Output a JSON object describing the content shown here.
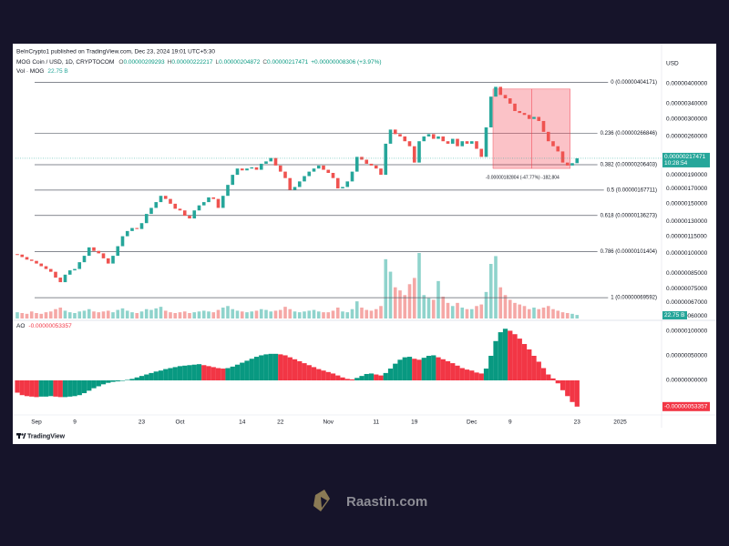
{
  "header": {
    "published": "BeInCrypto1 published on TradingView.com, Dec 23, 2024 19:01 UTC+5:30",
    "symbol": "MOG Coin / USD, 1D, CRYPTOCOM",
    "ohlc": [
      {
        "key": "O",
        "value": "0.00000209293"
      },
      {
        "key": "H",
        "value": "0.00000222217"
      },
      {
        "key": "L",
        "value": "0.00000204872"
      },
      {
        "key": "C",
        "value": "0.00000217471"
      }
    ],
    "change": "+0.00000008306 (+3.97%)"
  },
  "brand": "TradingView",
  "watermark": "Raastin.com",
  "chart_data": [
    {
      "type": "candlestick",
      "currency": "USD",
      "log_scale": true,
      "grid": false,
      "up_color": "#26a69a",
      "down_color": "#ef5350",
      "ylim": [
        5.87e-07,
        4.54e-06
      ],
      "yticks": [
        {
          "value": 4e-06,
          "label": "0.00000400000"
        },
        {
          "value": 3.4e-06,
          "label": "0.00000340000"
        },
        {
          "value": 3e-06,
          "label": "0.00000300000"
        },
        {
          "value": 2.6e-06,
          "label": "0.00000260000"
        },
        {
          "value": 1.9e-06,
          "label": "0.00000190000"
        },
        {
          "value": 1.7e-06,
          "label": "0.00000170000"
        },
        {
          "value": 1.5e-06,
          "label": "0.00000150000"
        },
        {
          "value": 1.3e-06,
          "label": "0.00000130000"
        },
        {
          "value": 1.15e-06,
          "label": "0.00000115000"
        },
        {
          "value": 1e-06,
          "label": "0.00000100000"
        },
        {
          "value": 8.5e-07,
          "label": "0.00000085000"
        },
        {
          "value": 7.5e-07,
          "label": "0.00000075000"
        },
        {
          "value": 6.7e-07,
          "label": "0.00000067000"
        },
        {
          "value": 6e-07,
          "label": "0.00000060000"
        }
      ],
      "series": [
        {
          "name": "MOG Coin / USD",
          "values": [
            9.9e-07,
            9.7e-07,
            9.5e-07,
            9.4e-07,
            9.2e-07,
            9e-07,
            8.8e-07,
            8.6e-07,
            8.2e-07,
            7.9e-07,
            8.4e-07,
            8.7e-07,
            8.8e-07,
            9.3e-07,
            9.8e-07,
            1.05e-06,
            1.02e-06,
            1e-06,
            9.6e-07,
            9.2e-07,
            9.8e-07,
            1.06e-06,
            1.15e-06,
            1.2e-06,
            1.23e-06,
            1.22e-06,
            1.28e-06,
            1.38e-06,
            1.45e-06,
            1.52e-06,
            1.6e-06,
            1.56e-06,
            1.5e-06,
            1.44e-06,
            1.42e-06,
            1.36e-06,
            1.33e-06,
            1.42e-06,
            1.48e-06,
            1.52e-06,
            1.58e-06,
            1.56e-06,
            1.45e-06,
            1.6e-06,
            1.75e-06,
            1.9e-06,
            2e-06,
            1.97e-06,
            2e-06,
            2.02e-06,
            1.98e-06,
            2.08e-06,
            2.12e-06,
            2.18e-06,
            2.05e-06,
            1.95e-06,
            1.85e-06,
            1.68e-06,
            1.72e-06,
            1.8e-06,
            1.88e-06,
            1.95e-06,
            2e-06,
            2.05e-06,
            1.98e-06,
            1.93e-06,
            1.85e-06,
            1.7e-06,
            1.72e-06,
            1.8e-06,
            1.95e-06,
            2.2e-06,
            2.15e-06,
            2.08e-06,
            2.05e-06,
            2e-06,
            1.9e-06,
            2.45e-06,
            2.75e-06,
            2.65e-06,
            2.6e-06,
            2.5e-06,
            2.4e-06,
            2.1e-06,
            2.5e-06,
            2.6e-06,
            2.65e-06,
            2.55e-06,
            2.6e-06,
            2.5e-06,
            2.45e-06,
            2.55e-06,
            2.4e-06,
            2.5e-06,
            2.45e-06,
            2.5e-06,
            2.35e-06,
            2.2e-06,
            2.8e-06,
            3.6e-06,
            3.9e-06,
            3.65e-06,
            3.55e-06,
            3.4e-06,
            3.2e-06,
            3.15e-06,
            3.1e-06,
            3e-06,
            3.05e-06,
            2.95e-06,
            2.7e-06,
            2.5e-06,
            2.4e-06,
            2.3e-06,
            2.1e-06,
            2.05e-06,
            2.09e-06,
            2.17471e-06,
            null,
            null,
            null,
            null,
            null,
            null,
            null,
            null,
            null
          ]
        }
      ],
      "last_label": {
        "value": 2.17471e-06,
        "label": "0.00000217471"
      },
      "countdown": "10:28:54",
      "fib_levels": [
        {
          "value": 4.04171e-06,
          "label": "0 (0.00000404171)"
        },
        {
          "value": 2.66846e-06,
          "label": "0.236 (0.00000266846)"
        },
        {
          "value": 2.06403e-06,
          "label": "0.382 (0.00000206403)"
        },
        {
          "value": 1.67711e-06,
          "label": "0.5 (0.00000167711)"
        },
        {
          "value": 1.36273e-06,
          "label": "0.618 (0.00000136273)"
        },
        {
          "value": 1.01404e-06,
          "label": "0.786 (0.00000101404)"
        },
        {
          "value": 6.9592e-07,
          "label": "1 (0.00000069592)"
        }
      ],
      "measure": {
        "from": 3.83e-06,
        "to": 2.00196e-06,
        "label": "-0.00000182804 (-47.77%) -182,804"
      }
    },
    {
      "type": "bar",
      "title": "Vol · MOG",
      "up_color": "#8fd3cc",
      "down_color": "#f5a8a6",
      "series": [
        {
          "name": "Vol · MOG",
          "values": [
            40000000000.0,
            35000000000.0,
            30000000000.0,
            45000000000.0,
            35000000000.0,
            30000000000.0,
            40000000000.0,
            45000000000.0,
            60000000000.0,
            70000000000.0,
            50000000000.0,
            40000000000.0,
            35000000000.0,
            45000000000.0,
            50000000000.0,
            60000000000.0,
            45000000000.0,
            40000000000.0,
            45000000000.0,
            50000000000.0,
            40000000000.0,
            55000000000.0,
            65000000000.0,
            50000000000.0,
            40000000000.0,
            35000000000.0,
            45000000000.0,
            60000000000.0,
            55000000000.0,
            65000000000.0,
            75000000000.0,
            50000000000.0,
            40000000000.0,
            35000000000.0,
            40000000000.0,
            45000000000.0,
            35000000000.0,
            40000000000.0,
            45000000000.0,
            50000000000.0,
            45000000000.0,
            40000000000.0,
            55000000000.0,
            70000000000.0,
            80000000000.0,
            60000000000.0,
            50000000000.0,
            45000000000.0,
            40000000000.0,
            45000000000.0,
            50000000000.0,
            60000000000.0,
            55000000000.0,
            45000000000.0,
            50000000000.0,
            55000000000.0,
            75000000000.0,
            60000000000.0,
            45000000000.0,
            40000000000.0,
            45000000000.0,
            50000000000.0,
            55000000000.0,
            45000000000.0,
            40000000000.0,
            40000000000.0,
            50000000000.0,
            70000000000.0,
            45000000000.0,
            40000000000.0,
            60000000000.0,
            110000000000.0,
            70000000000.0,
            55000000000.0,
            50000000000.0,
            60000000000.0,
            80000000000.0,
            380000000000.0,
            300000000000.0,
            200000000000.0,
            180000000000.0,
            150000000000.0,
            220000000000.0,
            260000000000.0,
            420000000000.0,
            150000000000.0,
            130000000000.0,
            120000000000.0,
            240000000000.0,
            140000000000.0,
            100000000000.0,
            80000000000.0,
            100000000000.0,
            70000000000.0,
            60000000000.0,
            60000000000.0,
            80000000000.0,
            90000000000.0,
            170000000000.0,
            350000000000.0,
            400000000000.0,
            200000000000.0,
            150000000000.0,
            120000000000.0,
            100000000000.0,
            90000000000.0,
            80000000000.0,
            60000000000.0,
            70000000000.0,
            60000000000.0,
            70000000000.0,
            80000000000.0,
            60000000000.0,
            50000000000.0,
            40000000000.0,
            35000000000.0,
            30000000000.0,
            22750000000.0,
            null,
            null,
            null,
            null,
            null,
            null,
            null,
            null,
            null
          ]
        }
      ],
      "last_label": {
        "value": 22750000000.0,
        "label": "22.75 B"
      }
    },
    {
      "type": "bar",
      "title": "AO",
      "up_color": "#089981",
      "down_color": "#f23645",
      "ylim": [
        -6.85e-07,
        1.148e-06
      ],
      "yticks": [
        {
          "value": 1e-06,
          "label": "0.00000100000"
        },
        {
          "value": 5e-07,
          "label": "0.00000050000"
        },
        {
          "value": 0,
          "label": "0.00000000000"
        }
      ],
      "categories": [
        null,
        null,
        null,
        null,
        "Sep",
        null,
        null,
        null,
        null,
        null,
        null,
        null,
        "9",
        null,
        null,
        null,
        null,
        null,
        null,
        null,
        null,
        null,
        null,
        null,
        null,
        null,
        "23",
        null,
        null,
        null,
        null,
        null,
        null,
        null,
        "Oct",
        null,
        null,
        null,
        null,
        null,
        null,
        null,
        null,
        null,
        null,
        null,
        null,
        "14",
        null,
        null,
        null,
        null,
        null,
        null,
        null,
        "22",
        null,
        null,
        null,
        null,
        null,
        null,
        null,
        null,
        null,
        "Nov",
        null,
        null,
        null,
        null,
        null,
        null,
        null,
        null,
        null,
        "11",
        null,
        null,
        null,
        null,
        null,
        null,
        null,
        "19",
        null,
        null,
        null,
        null,
        null,
        null,
        null,
        null,
        null,
        null,
        null,
        "Dec",
        null,
        null,
        null,
        null,
        null,
        null,
        null,
        "9",
        null,
        null,
        null,
        null,
        null,
        null,
        null,
        null,
        null,
        null,
        null,
        null,
        null,
        "23",
        null,
        null,
        null,
        null,
        null,
        null,
        null,
        null,
        "2025"
      ],
      "series": [
        {
          "name": "AO",
          "values": [
            -2.5e-07,
            -3e-07,
            -3.2e-07,
            -3.3e-07,
            -3.4e-07,
            -3.3e-07,
            -3.3e-07,
            -3.2e-07,
            -3.3e-07,
            -3.4e-07,
            -3.4e-07,
            -3.3e-07,
            -3.2e-07,
            -3e-07,
            -2.6e-07,
            -2.1e-07,
            -1.6e-07,
            -1.2e-07,
            -8e-08,
            -5e-08,
            -3e-08,
            -2e-08,
            -1e-08,
            1e-08,
            3e-08,
            6e-08,
            9e-08,
            1.2e-07,
            1.5e-07,
            1.8e-07,
            2e-07,
            2.3e-07,
            2.5e-07,
            2.7e-07,
            2.9e-07,
            3e-07,
            3.1e-07,
            3.2e-07,
            3.3e-07,
            3.1e-07,
            2.9e-07,
            2.7e-07,
            2.5e-07,
            2.4e-07,
            2.5e-07,
            2.8e-07,
            3.2e-07,
            3.6e-07,
            4e-07,
            4.4e-07,
            4.8e-07,
            5.1e-07,
            5.3e-07,
            5.4e-07,
            5.4e-07,
            5.3e-07,
            5.1e-07,
            4.7e-07,
            4.3e-07,
            3.9e-07,
            3.5e-07,
            3.1e-07,
            2.7e-07,
            2.3e-07,
            2e-07,
            1.7e-07,
            1.4e-07,
            1e-07,
            6e-08,
            3e-08,
            2e-08,
            5e-08,
            9e-08,
            1.3e-07,
            1.4e-07,
            1.2e-07,
            1e-07,
            1.5e-07,
            2.4e-07,
            3.4e-07,
            4.2e-07,
            4.7e-07,
            4.8e-07,
            4.4e-07,
            4.2e-07,
            4.6e-07,
            5e-07,
            5.1e-07,
            4.7e-07,
            4.3e-07,
            3.9e-07,
            3.5e-07,
            3e-07,
            2.5e-07,
            2.2e-07,
            2e-07,
            1.6e-07,
            1.4e-07,
            2.4e-07,
            5e-07,
            8e-07,
            9.8e-07,
            1.05e-06,
            1.01e-06,
            9.4e-07,
            8.5e-07,
            7.4e-07,
            6.3e-07,
            5e-07,
            3.8e-07,
            2.5e-07,
            1.2e-07,
            4e-08,
            -6e-08,
            -2e-07,
            -3.2e-07,
            -4.4e-07,
            -5.3357e-07,
            null,
            null,
            null,
            null,
            null,
            null,
            null,
            null,
            null
          ]
        }
      ],
      "last_label": {
        "value": -5.3357e-07,
        "label": "-0.00000053357"
      }
    }
  ]
}
